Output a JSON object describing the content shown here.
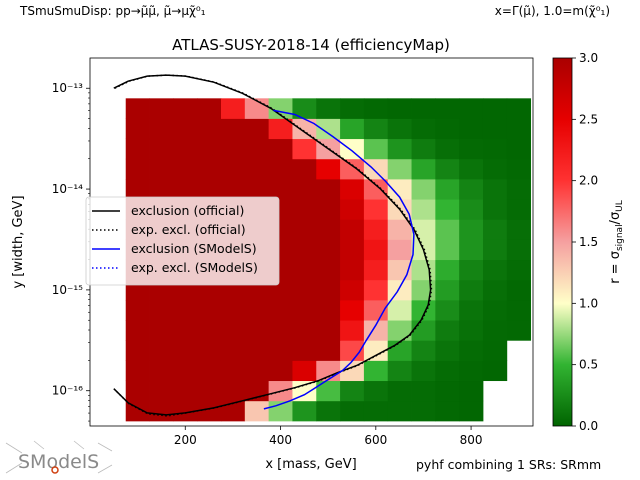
{
  "header": {
    "left": "TSmuSmuDisp: pp→μ̃μ̃, μ̃→μχ̃⁰₁",
    "right": "x=Γ(μ̃), 1.0=m(χ̃⁰₁)"
  },
  "footer": {
    "note": "pyhf combining 1 SRs: SRmm",
    "logo": "SModelS"
  },
  "colors": {
    "official": "#000000",
    "smodels": "#0000ff"
  },
  "chart_data": {
    "type": "heatmap",
    "title": "ATLAS-SUSY-2018-14 (efficiencyMap)",
    "xlabel": "x [mass, GeV]",
    "ylabel": "y [width, GeV]",
    "xlim": [
      0,
      930
    ],
    "ylim_log10": [
      -16.35,
      -12.7
    ],
    "x_ticks": [
      200,
      400,
      600,
      800
    ],
    "y_ticks": [
      {
        "exp": -13,
        "label": "10⁻¹³"
      },
      {
        "exp": -14,
        "label": "10⁻¹⁴"
      },
      {
        "exp": -15,
        "label": "10⁻¹⁵"
      },
      {
        "exp": -16,
        "label": "10⁻¹⁶"
      }
    ],
    "colorbar": {
      "label": "r = σsignal/σUL",
      "range": [
        0,
        3
      ],
      "ticks": [
        "0.0",
        "0.5",
        "1.0",
        "1.5",
        "2.0",
        "2.5",
        "3.0"
      ]
    },
    "grid": {
      "x_centers": [
        100,
        150,
        200,
        250,
        300,
        350,
        400,
        450,
        500,
        550,
        600,
        650,
        700,
        750,
        800,
        850,
        900
      ],
      "y_log10_centers": [
        -16.2,
        -16.0,
        -15.8,
        -15.6,
        -15.4,
        -15.2,
        -15.0,
        -14.8,
        -14.6,
        -14.4,
        -14.2,
        -14.0,
        -13.8,
        -13.6,
        -13.4,
        -13.2
      ],
      "r": [
        [
          3,
          3,
          3,
          3,
          3,
          1.3,
          0.7,
          0.3,
          0.1,
          0.05,
          0.05,
          0.05,
          0.05,
          0.03,
          0.02,
          null,
          null
        ],
        [
          3,
          3,
          3,
          3,
          3,
          3,
          1.6,
          1.0,
          0.55,
          0.2,
          0.1,
          0.05,
          0.05,
          0.03,
          0.02,
          null,
          null
        ],
        [
          3,
          3,
          3,
          3,
          3,
          3,
          3,
          2.6,
          1.6,
          1.2,
          0.5,
          0.2,
          0.1,
          0.05,
          0.03,
          0.02,
          null
        ],
        [
          3,
          3,
          3,
          3,
          3,
          3,
          3,
          3,
          3,
          1.9,
          1.1,
          0.4,
          0.2,
          0.1,
          0.05,
          0.03,
          null
        ],
        [
          3,
          3,
          3,
          3,
          3,
          3,
          3,
          3,
          3,
          2.3,
          1.4,
          0.7,
          0.35,
          0.15,
          0.08,
          0.04,
          0.03
        ],
        [
          3,
          3,
          3,
          3,
          3,
          3,
          3,
          3,
          3,
          2.5,
          1.8,
          0.9,
          0.5,
          0.25,
          0.1,
          0.05,
          0.03
        ],
        [
          3,
          3,
          3,
          3,
          3,
          3,
          3,
          3,
          3,
          2.7,
          2.0,
          1.1,
          0.7,
          0.35,
          0.15,
          0.07,
          0.03
        ],
        [
          3,
          3,
          3,
          3,
          3,
          3,
          3,
          3,
          3,
          2.8,
          2.2,
          1.3,
          0.8,
          0.45,
          0.2,
          0.1,
          0.05
        ],
        [
          3,
          3,
          3,
          3,
          3,
          3,
          3,
          3,
          3,
          2.8,
          2.3,
          1.5,
          0.9,
          0.6,
          0.3,
          0.15,
          0.07
        ],
        [
          3,
          3,
          3,
          3,
          3,
          3,
          3,
          3,
          3,
          2.8,
          2.2,
          1.4,
          0.9,
          0.6,
          0.3,
          0.15,
          0.07
        ],
        [
          3,
          3,
          3,
          3,
          3,
          3,
          3,
          3,
          3,
          2.7,
          2.0,
          1.2,
          0.8,
          0.5,
          0.25,
          0.1,
          0.05
        ],
        [
          3,
          3,
          3,
          3,
          3,
          3,
          3,
          3,
          3,
          2.6,
          1.8,
          1.1,
          0.7,
          0.4,
          0.2,
          0.1,
          0.05
        ],
        [
          3,
          3,
          3,
          3,
          3,
          3,
          3,
          3,
          2.5,
          1.8,
          1.2,
          0.7,
          0.4,
          0.2,
          0.1,
          0.05,
          0.03
        ],
        [
          3,
          3,
          3,
          3,
          3,
          3,
          3,
          2.0,
          1.5,
          1.0,
          0.6,
          0.3,
          0.15,
          0.07,
          0.04,
          0.03,
          0.02
        ],
        [
          3,
          3,
          3,
          3,
          3,
          3,
          2.2,
          1.4,
          0.8,
          0.4,
          0.2,
          0.1,
          0.05,
          0.03,
          0.02,
          0.02,
          0.02
        ],
        [
          3,
          3,
          3,
          3,
          2.2,
          1.6,
          0.7,
          0.25,
          0.1,
          0.05,
          0.03,
          0.02,
          0.02,
          0.02,
          0.02,
          0.02,
          0.02
        ]
      ]
    },
    "series": [
      {
        "name": "exclusion (official)",
        "style": "solid",
        "color": "#000000",
        "x": [
          50,
          80,
          120,
          160,
          200,
          260,
          320,
          380,
          440,
          500,
          560,
          610,
          650,
          680,
          700,
          712,
          715,
          710,
          695,
          670,
          640,
          600,
          560,
          520,
          480,
          430,
          380,
          320,
          260,
          200,
          160,
          120,
          80,
          50
        ],
        "y": [
          -13.0,
          -12.93,
          -12.88,
          -12.87,
          -12.88,
          -12.94,
          -13.05,
          -13.2,
          -13.4,
          -13.6,
          -13.8,
          -14.0,
          -14.2,
          -14.4,
          -14.6,
          -14.8,
          -15.0,
          -15.15,
          -15.3,
          -15.45,
          -15.55,
          -15.65,
          -15.75,
          -15.82,
          -15.9,
          -15.97,
          -16.03,
          -16.1,
          -16.17,
          -16.22,
          -16.24,
          -16.22,
          -16.12,
          -15.98
        ]
      },
      {
        "name": "exp. excl. (official)",
        "style": "dotted",
        "color": "#000000",
        "x": [
          52,
          82,
          122,
          162,
          202,
          262,
          322,
          382,
          442,
          502,
          562,
          612,
          652,
          682,
          702,
          714,
          717,
          712,
          697,
          672,
          642,
          602,
          562,
          522,
          482,
          432,
          382,
          322,
          262,
          202,
          162,
          122,
          82,
          52
        ],
        "y": [
          -13.0,
          -12.93,
          -12.88,
          -12.87,
          -12.88,
          -12.94,
          -13.05,
          -13.2,
          -13.4,
          -13.6,
          -13.8,
          -14.0,
          -14.2,
          -14.4,
          -14.6,
          -14.8,
          -15.0,
          -15.15,
          -15.3,
          -15.45,
          -15.55,
          -15.65,
          -15.75,
          -15.82,
          -15.9,
          -15.97,
          -16.03,
          -16.1,
          -16.17,
          -16.22,
          -16.25,
          -16.23,
          -16.13,
          -15.99
        ]
      },
      {
        "name": "exclusion (SModelS)",
        "style": "solid",
        "color": "#0000ff",
        "x": [
          385,
          430,
          470,
          510,
          550,
          590,
          620,
          650,
          670,
          680,
          678,
          665,
          645,
          620,
          600,
          580,
          565,
          548,
          530,
          510,
          490,
          470,
          450,
          420,
          390,
          365
        ],
        "y": [
          -13.22,
          -13.26,
          -13.35,
          -13.48,
          -13.62,
          -13.78,
          -13.92,
          -14.08,
          -14.25,
          -14.45,
          -14.65,
          -14.85,
          -15.02,
          -15.18,
          -15.35,
          -15.5,
          -15.62,
          -15.72,
          -15.8,
          -15.86,
          -15.92,
          -15.98,
          -16.04,
          -16.1,
          -16.15,
          -16.18
        ]
      },
      {
        "name": "exp. excl. (SModelS)",
        "style": "dotted",
        "color": "#0000ff",
        "x": [],
        "y": []
      }
    ],
    "legend": {
      "position": "center-left"
    }
  }
}
